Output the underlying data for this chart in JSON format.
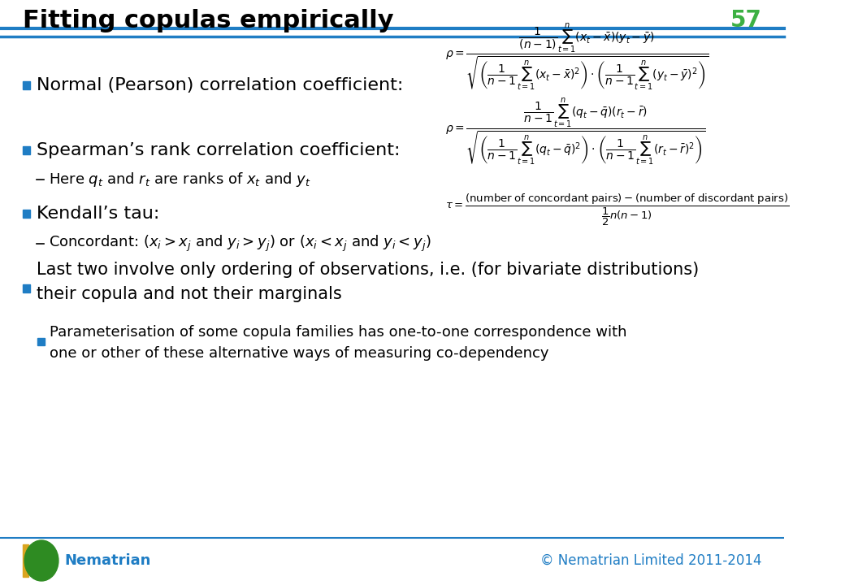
{
  "title": "Fitting copulas empirically",
  "slide_number": "57",
  "title_color": "#000000",
  "slide_number_color": "#3CB043",
  "header_line_color": "#1F7DC4",
  "background_color": "#FFFFFF",
  "bullet_color": "#1F7DC4",
  "text_color": "#000000",
  "footer_text_left": "Nematrian",
  "footer_text_right": "© Nematrian Limited 2011-2014",
  "footer_color": "#1F7DC4",
  "sub_bullet_color": "#1F7DC4",
  "small_bullet_color": "#1F7DC4",
  "bullet_square_color": "#1F7DC4",
  "bullet_small_square_color": "#1F7DC4"
}
